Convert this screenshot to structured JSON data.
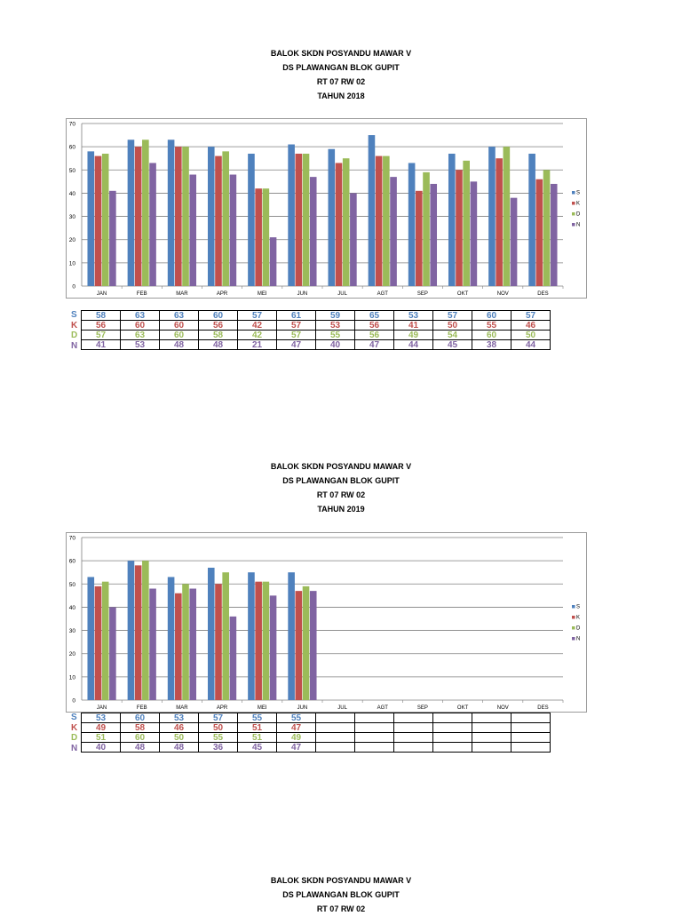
{
  "colors": {
    "S": "#4F81BD",
    "K": "#C0504D",
    "D": "#9BBB59",
    "N": "#8064A2"
  },
  "charts": [
    {
      "title_lines": [
        "BALOK SKDN POSYANDU MAWAR V",
        "DS PLAWANGAN BLOK GUPIT",
        "RT 07 RW 02",
        "TAHUN 2018"
      ],
      "row_labels": [
        "S",
        "K",
        "D",
        "N"
      ]
    },
    {
      "title_lines": [
        "BALOK SKDN POSYANDU MAWAR V",
        "DS PLAWANGAN BLOK GUPIT",
        "RT 07 RW 02",
        "TAHUN 2019"
      ],
      "row_labels": [
        "S",
        "K",
        "D",
        "N"
      ]
    },
    {
      "title_lines": [
        "BALOK SKDN POSYANDU MAWAR V",
        "DS PLAWANGAN BLOK GUPIT",
        "RT 07 RW 02"
      ]
    }
  ],
  "chart_data": [
    {
      "type": "bar",
      "title": "",
      "categories": [
        "JAN",
        "FEB",
        "MAR",
        "APR",
        "MEI",
        "JUN",
        "JUL",
        "AGT",
        "SEP",
        "OKT",
        "NOV",
        "DES"
      ],
      "series": [
        {
          "name": "S",
          "values": [
            58,
            63,
            63,
            60,
            57,
            61,
            59,
            65,
            53,
            57,
            60,
            57
          ]
        },
        {
          "name": "K",
          "values": [
            56,
            60,
            60,
            56,
            42,
            57,
            53,
            56,
            41,
            50,
            55,
            46
          ]
        },
        {
          "name": "D",
          "values": [
            57,
            63,
            60,
            58,
            42,
            57,
            55,
            56,
            49,
            54,
            60,
            50
          ]
        },
        {
          "name": "N",
          "values": [
            41,
            53,
            48,
            48,
            21,
            47,
            40,
            47,
            44,
            45,
            38,
            44
          ]
        }
      ],
      "ylim": [
        0,
        70
      ],
      "yticks": [
        0,
        10,
        20,
        30,
        40,
        50,
        60,
        70
      ],
      "grid": true,
      "legend": "right"
    },
    {
      "type": "bar",
      "title": "",
      "categories": [
        "JAN",
        "FEB",
        "MAR",
        "APR",
        "MEI",
        "JUN",
        "JUL",
        "AGT",
        "SEP",
        "OKT",
        "NOV",
        "DES"
      ],
      "series": [
        {
          "name": "S",
          "values": [
            53,
            60,
            53,
            57,
            55,
            55,
            null,
            null,
            null,
            null,
            null,
            null
          ]
        },
        {
          "name": "K",
          "values": [
            49,
            58,
            46,
            50,
            51,
            47,
            null,
            null,
            null,
            null,
            null,
            null
          ]
        },
        {
          "name": "D",
          "values": [
            51,
            60,
            50,
            55,
            51,
            49,
            null,
            null,
            null,
            null,
            null,
            null
          ]
        },
        {
          "name": "N",
          "values": [
            40,
            48,
            48,
            36,
            45,
            47,
            null,
            null,
            null,
            null,
            null,
            null
          ]
        }
      ],
      "ylim": [
        0,
        70
      ],
      "yticks": [
        0,
        10,
        20,
        30,
        40,
        50,
        60,
        70
      ],
      "grid": true,
      "legend": "right"
    }
  ]
}
